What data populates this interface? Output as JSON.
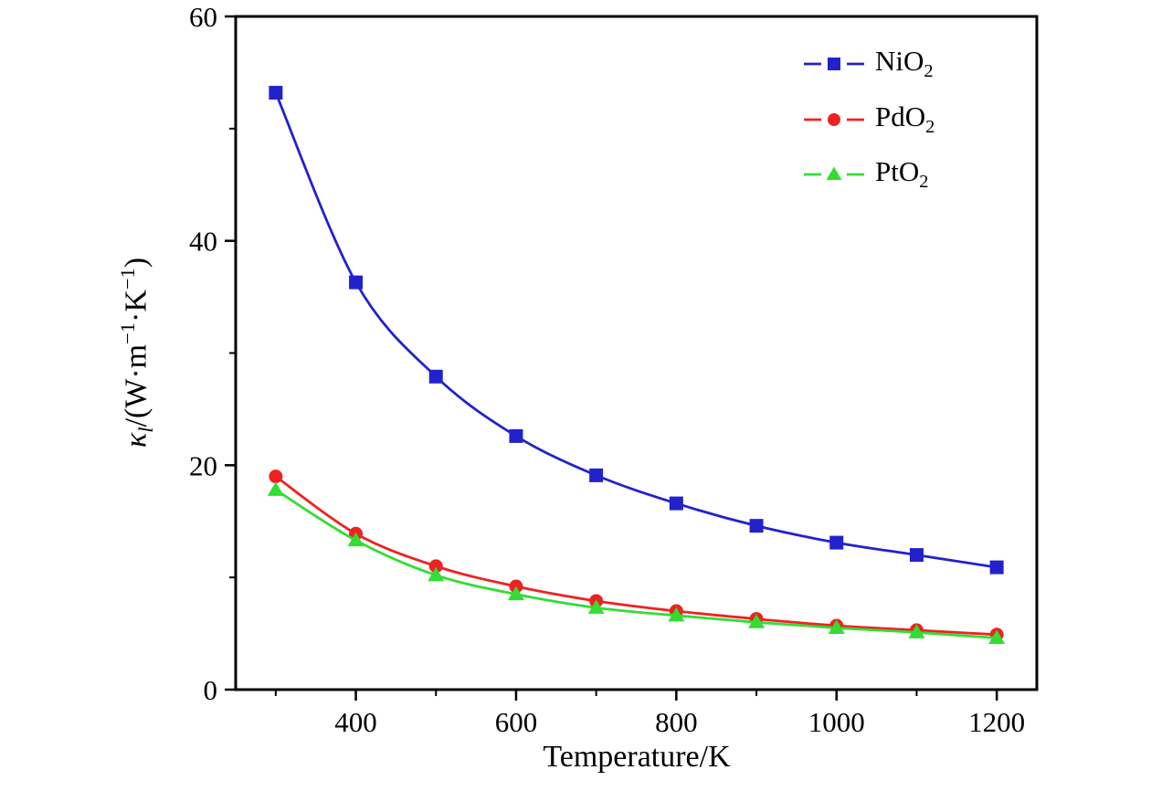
{
  "axes": {
    "xlabel": "Temperature/K",
    "ylabel": {
      "sym": "κ",
      "sub": "l",
      "seg1": "/(W·m",
      "sup1": "−1",
      "seg2": "·K",
      "sup2": "−1",
      "seg3": ")"
    }
  },
  "chart_data": {
    "type": "line",
    "title": "",
    "xlabel": "Temperature/K",
    "ylabel": "κ_l/(W·m^−1·K^−1)",
    "x": [
      300,
      400,
      500,
      600,
      700,
      800,
      900,
      1000,
      1100,
      1200
    ],
    "series": [
      {
        "label": "NiO2",
        "label_main": "NiO",
        "label_sub": "2",
        "marker": "square",
        "color": "#2222cc",
        "values": [
          53.2,
          36.3,
          27.9,
          22.6,
          19.1,
          16.6,
          14.6,
          13.1,
          12.0,
          10.9
        ]
      },
      {
        "label": "PdO2",
        "label_main": "PdO",
        "label_sub": "2",
        "marker": "circle",
        "color": "#ee2222",
        "values": [
          19.0,
          13.9,
          11.0,
          9.2,
          7.9,
          7.0,
          6.3,
          5.7,
          5.3,
          4.9
        ]
      },
      {
        "label": "PtO2",
        "label_main": "PtO",
        "label_sub": "2",
        "marker": "triangle",
        "color": "#33dd33",
        "values": [
          17.8,
          13.3,
          10.2,
          8.5,
          7.3,
          6.6,
          6.0,
          5.5,
          5.1,
          4.6
        ]
      }
    ],
    "xlim": [
      250,
      1250
    ],
    "ylim": [
      0,
      60
    ],
    "x_major_ticks": [
      400,
      600,
      800,
      1000,
      1200
    ],
    "x_minor_ticks": [
      300,
      500,
      700,
      900,
      1100
    ],
    "y_major_ticks": [
      0,
      20,
      40,
      60
    ],
    "y_minor_ticks": [
      10,
      30,
      50
    ],
    "grid": false,
    "legend_position": "top-right",
    "axis_color": "#000000"
  }
}
